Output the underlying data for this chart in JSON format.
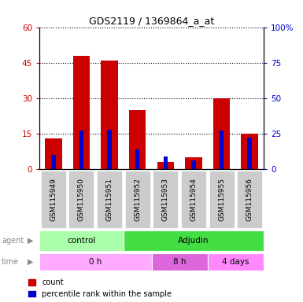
{
  "title": "GDS2119 / 1369864_a_at",
  "samples": [
    "GSM115949",
    "GSM115950",
    "GSM115951",
    "GSM115952",
    "GSM115953",
    "GSM115954",
    "GSM115955",
    "GSM115956"
  ],
  "count_values": [
    13,
    48,
    46,
    25,
    3,
    5,
    30,
    15
  ],
  "percentile_values": [
    10,
    27,
    28,
    14,
    9,
    6,
    27,
    22
  ],
  "left_ylim": [
    0,
    60
  ],
  "right_ylim": [
    0,
    100
  ],
  "left_yticks": [
    0,
    15,
    30,
    45,
    60
  ],
  "right_yticks": [
    0,
    25,
    50,
    75,
    100
  ],
  "right_yticklabels": [
    "0",
    "25",
    "50",
    "75",
    "100%"
  ],
  "left_tick_color": "#cc0000",
  "right_tick_color": "#0000cc",
  "bar_color_count": "#cc0000",
  "bar_color_percentile": "#0000cc",
  "legend_count_label": "count",
  "legend_percentile_label": "percentile rank within the sample",
  "bar_width": 0.6,
  "blue_bar_width": 0.15,
  "agent_ctrl_color": "#aaffaa",
  "agent_adj_color": "#44dd44",
  "time_0h_color": "#ffaaff",
  "time_8h_color": "#dd66dd",
  "time_4d_color": "#ff88ff",
  "label_row_bg": "#cccccc",
  "figsize": [
    3.85,
    3.84
  ],
  "dpi": 100
}
